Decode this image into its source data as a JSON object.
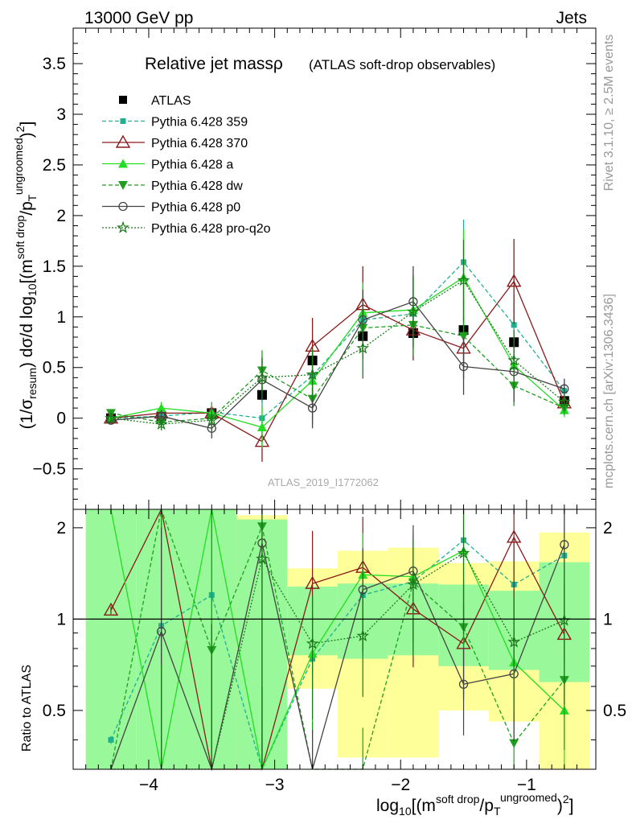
{
  "header": {
    "left": "13000 GeV pp",
    "right": "Jets"
  },
  "side_labels": {
    "rivet": "Rivet 3.1.10, ≥ 2.5M events",
    "mcplots": "mcplots.cern.ch [arXiv:1306.3436]"
  },
  "watermark": "ATLAS_2019_I1772062",
  "chart_data": [
    {
      "type": "line",
      "title": "Relative jet massρ",
      "subtitle": "(ATLAS soft-drop observables)",
      "xlabel": "log10[(m^soft drop/pT^ungroomed)^2]",
      "ylabel": "(1/σresum) dσ/d log10[(m^soft drop/pT^ungroomed)^2]",
      "xlim": [
        -4.6,
        -0.45
      ],
      "ylim": [
        -0.9,
        3.85
      ],
      "xticks": [
        -4,
        -3,
        -2,
        -1
      ],
      "xtick_labels": [
        "−4",
        "−3",
        "−2",
        "−1"
      ],
      "yticks": [
        -0.5,
        0,
        0.5,
        1,
        1.5,
        2,
        2.5,
        3,
        3.5
      ],
      "ytick_labels": [
        "−0.5",
        "0",
        "0.5",
        "1",
        "1.5",
        "2",
        "2.5",
        "3",
        "3.5"
      ],
      "x": [
        -4.3,
        -3.9,
        -3.5,
        -3.1,
        -2.7,
        -2.3,
        -1.9,
        -1.5,
        -1.1,
        -0.7
      ],
      "series": [
        {
          "name": "ATLAS",
          "color": "#000000",
          "marker": "square",
          "dash": "none",
          "values": [
            0.0,
            0.02,
            0.05,
            0.23,
            0.57,
            0.81,
            0.84,
            0.87,
            0.75,
            0.17
          ],
          "errors": [
            0.03,
            0.04,
            0.06,
            0.07,
            0.07,
            0.05,
            0.04,
            0.05,
            0.05,
            0.03
          ]
        },
        {
          "name": "Pythia 6.428 359",
          "color": "#20b090",
          "marker": "square-small",
          "dash": "5,3",
          "values": [
            0.0,
            0.02,
            0.06,
            0.0,
            0.42,
            0.97,
            1.03,
            1.54,
            0.92,
            0.27
          ],
          "errors": [
            0.03,
            0.06,
            0.1,
            0.2,
            0.25,
            0.3,
            0.35,
            0.42,
            0.3,
            0.08
          ]
        },
        {
          "name": "Pythia 6.428 370",
          "color": "#8b1a1a",
          "marker": "triangle-open",
          "dash": "none",
          "values": [
            0.0,
            0.05,
            0.05,
            -0.23,
            0.71,
            1.12,
            0.87,
            0.69,
            1.35,
            0.15
          ],
          "errors": [
            0.03,
            0.06,
            0.1,
            0.2,
            0.28,
            0.38,
            0.3,
            0.3,
            0.42,
            0.08
          ]
        },
        {
          "name": "Pythia 6.428 a",
          "color": "#22dd22",
          "marker": "triangle",
          "dash": "none",
          "values": [
            0.0,
            0.1,
            0.05,
            -0.09,
            0.37,
            1.04,
            1.07,
            1.39,
            0.52,
            0.08
          ],
          "errors": [
            0.03,
            0.06,
            0.1,
            0.2,
            0.25,
            0.3,
            0.35,
            0.47,
            0.3,
            0.07
          ]
        },
        {
          "name": "Pythia 6.428 dw",
          "color": "#1f9e1f",
          "marker": "triangle-down",
          "dash": "5,3",
          "values": [
            0.05,
            -0.04,
            0.0,
            0.47,
            0.19,
            0.89,
            0.92,
            0.81,
            0.32,
            0.1
          ],
          "errors": [
            0.03,
            0.06,
            0.1,
            0.2,
            0.25,
            0.3,
            0.3,
            0.35,
            0.2,
            0.07
          ]
        },
        {
          "name": "Pythia 6.428 p0",
          "color": "#444444",
          "marker": "circle-open",
          "dash": "none",
          "values": [
            -0.02,
            0.02,
            -0.1,
            0.38,
            0.1,
            0.97,
            1.15,
            0.51,
            0.46,
            0.29
          ],
          "errors": [
            0.03,
            0.06,
            0.1,
            0.2,
            0.2,
            0.3,
            0.35,
            0.28,
            0.3,
            0.1
          ]
        },
        {
          "name": "Pythia 6.428 pro-q2o",
          "color": "#1a7a1a",
          "marker": "star",
          "dash": "2,2",
          "values": [
            0.0,
            -0.06,
            -0.02,
            0.4,
            0.43,
            0.69,
            1.05,
            1.36,
            0.57,
            0.16
          ],
          "errors": [
            0.03,
            0.06,
            0.1,
            0.2,
            0.25,
            0.3,
            0.35,
            0.4,
            0.3,
            0.08
          ]
        }
      ]
    },
    {
      "type": "line",
      "ylabel": "Ratio to ATLAS",
      "ylim": [
        0.32,
        2.3
      ],
      "yticks": [
        0.5,
        1,
        2
      ],
      "ytick_labels": [
        "0.5",
        "1",
        "2"
      ],
      "bands": {
        "bins": [
          [
            -4.5,
            -4.1
          ],
          [
            -4.1,
            -3.7
          ],
          [
            -3.7,
            -3.3
          ],
          [
            -3.3,
            -2.9
          ],
          [
            -2.9,
            -2.5
          ],
          [
            -2.5,
            -2.1
          ],
          [
            -2.1,
            -1.7
          ],
          [
            -1.7,
            -1.3
          ],
          [
            -1.3,
            -0.9
          ],
          [
            -0.9,
            -0.5
          ]
        ],
        "yellow": [
          [
            0.32,
            2.3
          ],
          [
            0.32,
            2.3
          ],
          [
            0.32,
            2.3
          ],
          [
            0.32,
            2.2
          ],
          [
            0.59,
            1.47
          ],
          [
            0.35,
            1.68
          ],
          [
            0.35,
            1.72
          ],
          [
            0.5,
            1.53
          ],
          [
            0.46,
            1.55
          ],
          [
            0.32,
            1.93
          ]
        ],
        "green": [
          [
            0.32,
            2.3
          ],
          [
            0.32,
            2.3
          ],
          [
            0.32,
            2.3
          ],
          [
            0.32,
            2.13
          ],
          [
            0.76,
            1.28
          ],
          [
            0.74,
            1.31
          ],
          [
            0.76,
            1.31
          ],
          [
            0.7,
            1.3
          ],
          [
            0.68,
            1.24
          ],
          [
            0.62,
            1.54
          ]
        ]
      },
      "series": [
        {
          "name": "Pythia 6.428 359",
          "values": [
            0.4,
            0.95,
            1.2,
            0.32,
            0.74,
            1.2,
            1.33,
            1.82,
            1.3,
            1.62
          ]
        },
        {
          "name": "Pythia 6.428 370",
          "values": [
            1.07,
            2.3,
            0.32,
            0.32,
            1.31,
            1.48,
            1.08,
            0.83,
            1.86,
            0.89
          ]
        },
        {
          "name": "Pythia 6.428 a",
          "values": [
            2.3,
            0.32,
            2.3,
            0.32,
            0.77,
            1.4,
            1.38,
            1.68,
            0.72,
            0.5
          ]
        },
        {
          "name": "Pythia 6.428 dw",
          "values": [
            0.32,
            2.3,
            0.79,
            2.02,
            0.32,
            0.32,
            1.32,
            0.94,
            0.39,
            0.63
          ]
        },
        {
          "name": "Pythia 6.428 p0",
          "values": [
            0.32,
            0.91,
            0.32,
            1.78,
            0.32,
            1.25,
            1.44,
            0.61,
            0.66,
            1.76
          ]
        },
        {
          "name": "Pythia 6.428 pro-q2o",
          "values": [
            0.32,
            0.32,
            0.32,
            1.58,
            0.83,
            0.88,
            1.3,
            1.65,
            0.84,
            0.99
          ]
        }
      ]
    }
  ]
}
